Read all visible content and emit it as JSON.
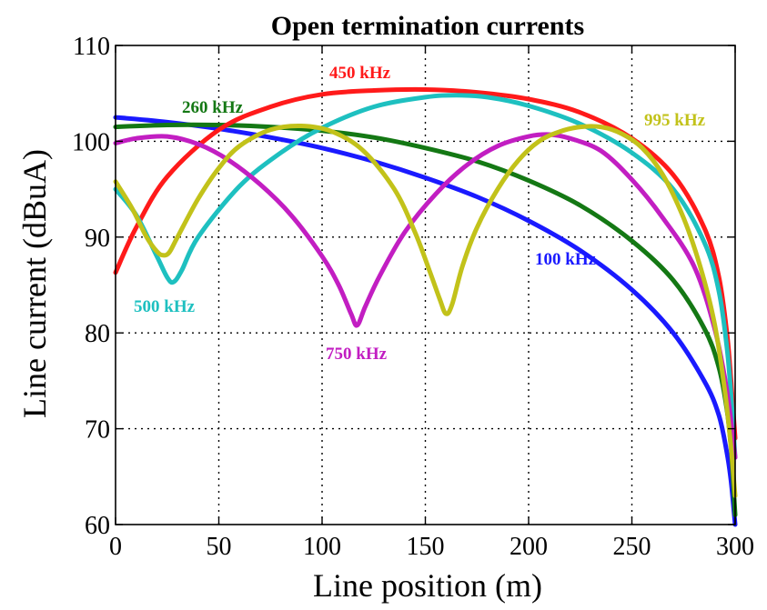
{
  "chart_data": {
    "type": "line",
    "title": "Open termination currents",
    "xlabel": "Line position (m)",
    "ylabel": "Line current (dBuA)",
    "xlim": [
      0,
      300
    ],
    "ylim": [
      60,
      110
    ],
    "xticks": [
      0,
      50,
      100,
      150,
      200,
      250,
      300
    ],
    "yticks": [
      60,
      70,
      80,
      90,
      100,
      110
    ],
    "grid": true,
    "series": [
      {
        "name": "100 kHz",
        "color": "#1a1aff",
        "x": [
          0,
          25,
          50,
          75,
          100,
          125,
          150,
          175,
          200,
          225,
          250,
          270,
          285,
          292,
          296,
          298,
          300
        ],
        "y": [
          102.5,
          102.0,
          101.3,
          100.4,
          99.3,
          97.9,
          96.2,
          94.2,
          91.7,
          88.6,
          84.5,
          80.0,
          75.0,
          71.5,
          67.5,
          64.5,
          60
        ]
      },
      {
        "name": "260 kHz",
        "color": "#147814",
        "x": [
          0,
          25,
          50,
          75,
          100,
          125,
          150,
          175,
          200,
          225,
          250,
          270,
          285,
          292,
          296,
          298,
          300
        ],
        "y": [
          101.5,
          101.7,
          101.7,
          101.5,
          101.1,
          100.4,
          99.3,
          97.9,
          95.9,
          93.3,
          89.6,
          85.5,
          80.5,
          76.5,
          72.0,
          68.0,
          61
        ]
      },
      {
        "name": "450 kHz",
        "color": "#ff1a1a",
        "x": [
          0,
          10,
          25,
          50,
          75,
          100,
          125,
          150,
          175,
          200,
          225,
          250,
          270,
          285,
          292,
          296,
          298,
          300
        ],
        "y": [
          86.3,
          91.0,
          96.3,
          101.2,
          103.6,
          104.9,
          105.3,
          105.4,
          105.1,
          104.4,
          103.0,
          100.3,
          96.5,
          91.0,
          86.0,
          80.0,
          75.0,
          69.0
        ]
      },
      {
        "name": "500 kHz",
        "color": "#1ec0c0",
        "x": [
          0,
          10,
          20,
          25,
          28,
          32,
          40,
          60,
          80,
          100,
          125,
          150,
          165,
          180,
          200,
          225,
          250,
          270,
          285,
          292,
          296,
          298,
          300
        ],
        "y": [
          95.0,
          92.3,
          88.0,
          85.8,
          85.3,
          86.5,
          90.0,
          95.3,
          98.8,
          101.4,
          103.6,
          104.6,
          104.8,
          104.6,
          103.7,
          101.8,
          98.8,
          95.0,
          89.5,
          84.5,
          78.5,
          73.5,
          67.0
        ]
      },
      {
        "name": "750 kHz",
        "color": "#c21ec2",
        "x": [
          0,
          10,
          25,
          40,
          55,
          70,
          85,
          100,
          108,
          114,
          117,
          121,
          128,
          140,
          155,
          170,
          185,
          200,
          210,
          220,
          235,
          250,
          265,
          280,
          290,
          296,
          300
        ],
        "y": [
          99.8,
          100.3,
          100.5,
          99.7,
          98.0,
          95.5,
          92.3,
          88.0,
          85.0,
          82.0,
          80.8,
          82.8,
          86.0,
          90.5,
          94.5,
          97.5,
          99.5,
          100.5,
          100.7,
          100.3,
          99.0,
          96.0,
          92.0,
          87.0,
          80.5,
          74.0,
          67.0
        ]
      },
      {
        "name": "995 kHz",
        "color": "#c2c21a",
        "x": [
          0,
          8,
          15,
          20,
          23,
          26,
          30,
          40,
          50,
          60,
          75,
          90,
          105,
          120,
          135,
          145,
          152,
          157,
          160,
          163,
          168,
          175,
          185,
          195,
          205,
          215,
          225,
          235,
          245,
          255,
          265,
          275,
          283,
          290,
          295,
          298,
          300
        ],
        "y": [
          95.8,
          93.0,
          90.0,
          88.5,
          88.1,
          88.4,
          90.0,
          94.0,
          97.2,
          99.5,
          101.2,
          101.6,
          101.0,
          99.0,
          95.0,
          90.5,
          86.5,
          83.5,
          82.0,
          83.0,
          87.0,
          91.0,
          95.0,
          98.0,
          100.0,
          101.0,
          101.5,
          101.5,
          100.8,
          99.3,
          96.5,
          92.0,
          87.0,
          81.0,
          74.0,
          68.0,
          63.0
        ]
      }
    ]
  }
}
